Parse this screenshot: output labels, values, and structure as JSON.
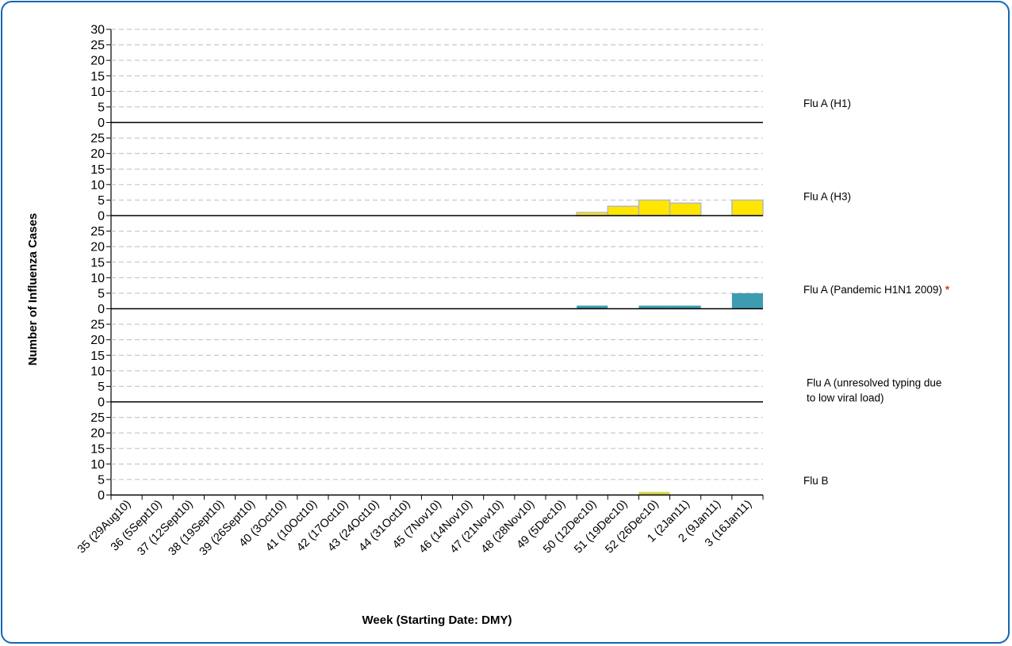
{
  "colors": {
    "frame": "#1567b4",
    "h3_fill": "#ffe600",
    "h3_stroke": "#b8b8b8",
    "pandemic_fill": "#3f9bb0",
    "flu_b_fill": "#d6d64a",
    "gridline": "#bdbdbd",
    "asterisk": "#e0352b"
  },
  "chart_data": {
    "type": "bar",
    "layout": "stacked-panels",
    "xlabel": "Week (Starting Date: DMY)",
    "ylabel": "Number of Influenza Cases",
    "ylim": [
      0,
      30
    ],
    "yticks": [
      "0",
      "5",
      "10",
      "15",
      "20",
      "25",
      "30"
    ],
    "grid": true,
    "categories": [
      "35 (29Aug10)",
      "36 (5Sept10)",
      "37 (12Sept10)",
      "38 (19Sept10)",
      "39 (26Sept10)",
      "40 (3Oct10)",
      "41 (10Oct10)",
      "42 (17Oct10)",
      "43 (24Oct10)",
      "44 (31Oct10)",
      "45 (7Nov10)",
      "46 (14Nov10)",
      "47 (21Nov10)",
      "48 (28Nov10)",
      "49 (5Dec10)",
      "50 (12Dec10)",
      "51 (19Dec10)",
      "52 (26Dec10)",
      "1 (2Jan11)",
      "2 (9Jan11)",
      "3 (16Jan11)"
    ],
    "series": [
      {
        "name": "Flu A (H1)",
        "label_suffix": "",
        "color": "#ffffff",
        "values": [
          0,
          0,
          0,
          0,
          0,
          0,
          0,
          0,
          0,
          0,
          0,
          0,
          0,
          0,
          0,
          0,
          0,
          0,
          0,
          0,
          0
        ]
      },
      {
        "name": "Flu A (H3)",
        "label_suffix": "",
        "color": "#ffe600",
        "values": [
          0,
          0,
          0,
          0,
          0,
          0,
          0,
          0,
          0,
          0,
          0,
          0,
          0,
          0,
          0,
          1,
          3,
          5,
          4,
          0,
          5
        ]
      },
      {
        "name": "Flu A (Pandemic H1N1 2009)",
        "label_suffix": "*",
        "color": "#3f9bb0",
        "values": [
          0,
          0,
          0,
          0,
          0,
          0,
          0,
          0,
          0,
          0,
          0,
          0,
          0,
          0,
          0,
          1,
          0,
          1,
          1,
          0,
          5
        ]
      },
      {
        "name": "Flu A (unresolved typing due to low viral load)",
        "label_suffix": "",
        "color": "#ffffff",
        "values": [
          0,
          0,
          0,
          0,
          0,
          0,
          0,
          0,
          0,
          0,
          0,
          0,
          0,
          0,
          0,
          0,
          0,
          0,
          0,
          0,
          0
        ]
      },
      {
        "name": "Flu B",
        "label_suffix": "",
        "color": "#d6d64a",
        "values": [
          0,
          0,
          0,
          0,
          0,
          0,
          0,
          0,
          0,
          0,
          0,
          0,
          0,
          0,
          0,
          0,
          0,
          1,
          0,
          0,
          0
        ]
      }
    ]
  }
}
